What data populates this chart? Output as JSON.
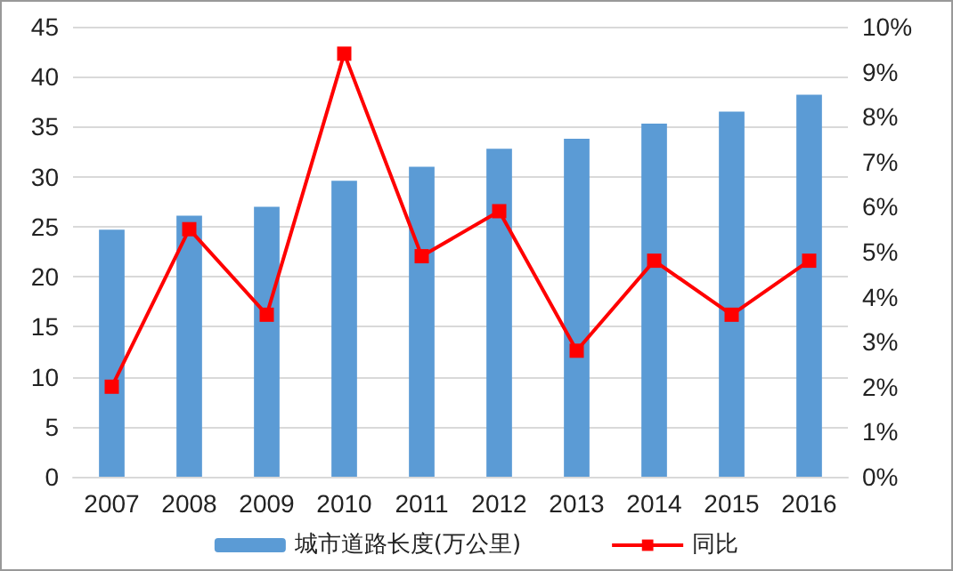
{
  "chart_data": {
    "type": "bar",
    "categories": [
      "2007",
      "2008",
      "2009",
      "2010",
      "2011",
      "2012",
      "2013",
      "2014",
      "2015",
      "2016"
    ],
    "series": [
      {
        "name": "城市道路长度(万公里)",
        "color": "#5b9bd5",
        "values": [
          24.7,
          26.1,
          27.0,
          29.6,
          31.0,
          32.8,
          33.8,
          35.3,
          36.5,
          38.2
        ]
      },
      {
        "name": "同比",
        "type": "line",
        "axis": "y2",
        "color": "#ff0000",
        "marker": "square",
        "values": [
          2.0,
          5.5,
          3.6,
          9.4,
          4.9,
          5.9,
          2.8,
          4.8,
          3.6,
          4.8
        ]
      }
    ],
    "ylim": [
      0,
      45
    ],
    "yticks": [
      0,
      5,
      10,
      15,
      20,
      25,
      30,
      35,
      40,
      45
    ],
    "y2lim": [
      0,
      10
    ],
    "y2ticks": [
      {
        "value": 0,
        "label": "0%"
      },
      {
        "value": 1,
        "label": "1%"
      },
      {
        "value": 2,
        "label": "2%"
      },
      {
        "value": 3,
        "label": "3%"
      },
      {
        "value": 4,
        "label": "4%"
      },
      {
        "value": 5,
        "label": "5%"
      },
      {
        "value": 6,
        "label": "6%"
      },
      {
        "value": 7,
        "label": "7%"
      },
      {
        "value": 8,
        "label": "8%"
      },
      {
        "value": 9,
        "label": "9%"
      },
      {
        "value": 10,
        "label": "10%"
      }
    ],
    "grid": "y",
    "legend": "bottom"
  }
}
